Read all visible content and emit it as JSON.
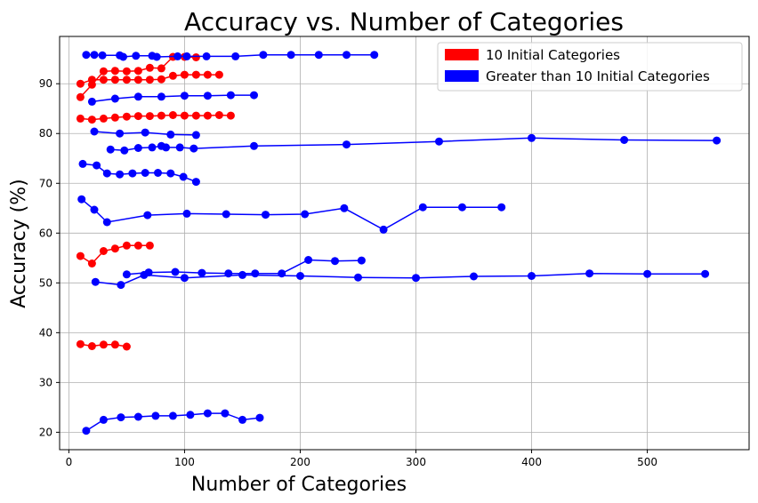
{
  "chart_data": {
    "type": "line",
    "title": "Accuracy vs. Number of Categories",
    "xlabel": "Number of Categories",
    "ylabel": "Accuracy (%)",
    "xlim": [
      -8,
      588
    ],
    "ylim": [
      16.5,
      99.5
    ],
    "xticks": [
      0,
      100,
      200,
      300,
      400,
      500
    ],
    "yticks": [
      20,
      30,
      40,
      50,
      60,
      70,
      80,
      90
    ],
    "grid": true,
    "legend_position": "top-right",
    "legend": [
      {
        "label": "10 Initial Categories",
        "color": "#ff0000"
      },
      {
        "label": "Greater than 10 Initial Categories",
        "color": "#0000ff"
      }
    ],
    "series": [
      {
        "color": "#ff0000",
        "x": [
          10,
          20,
          30,
          40,
          50,
          60,
          70,
          80,
          90,
          100,
          110,
          120,
          130
        ],
        "y": [
          90.0,
          90.8,
          90.8,
          90.8,
          90.8,
          90.8,
          90.8,
          90.9,
          91.6,
          91.8,
          91.8,
          91.8,
          91.8
        ]
      },
      {
        "color": "#ff0000",
        "x": [
          10,
          20,
          30,
          40,
          50,
          60,
          70,
          80,
          90,
          100,
          110
        ],
        "y": [
          87.3,
          89.8,
          92.5,
          92.6,
          92.5,
          92.6,
          93.2,
          93.1,
          95.4,
          95.4,
          95.3
        ]
      },
      {
        "color": "#ff0000",
        "x": [
          10,
          20,
          30,
          40,
          50,
          60,
          70,
          80,
          90,
          100,
          110,
          120,
          130,
          140
        ],
        "y": [
          83.0,
          82.8,
          83.0,
          83.2,
          83.4,
          83.5,
          83.5,
          83.6,
          83.7,
          83.6,
          83.6,
          83.6,
          83.7,
          83.6
        ]
      },
      {
        "color": "#ff0000",
        "x": [
          10,
          20,
          30,
          40,
          50,
          60,
          70
        ],
        "y": [
          55.4,
          53.9,
          56.4,
          56.9,
          57.5,
          57.5,
          57.5
        ]
      },
      {
        "color": "#ff0000",
        "x": [
          10,
          20,
          30,
          40,
          50
        ],
        "y": [
          37.7,
          37.3,
          37.6,
          37.6,
          37.2
        ]
      },
      {
        "color": "#0000ff",
        "x": [
          15,
          22,
          29,
          44,
          47,
          58,
          72,
          76,
          94,
          102,
          119,
          144,
          168,
          192,
          216,
          240,
          264
        ],
        "y": [
          95.8,
          95.8,
          95.7,
          95.7,
          95.4,
          95.6,
          95.6,
          95.4,
          95.5,
          95.5,
          95.5,
          95.5,
          95.8,
          95.8,
          95.8,
          95.8,
          95.8
        ]
      },
      {
        "color": "#0000ff",
        "x": [
          20,
          40,
          60,
          80,
          100,
          120,
          140,
          160
        ],
        "y": [
          86.4,
          87.0,
          87.4,
          87.4,
          87.6,
          87.6,
          87.7,
          87.7
        ]
      },
      {
        "color": "#0000ff",
        "x": [
          22,
          44,
          66,
          88,
          110
        ],
        "y": [
          80.4,
          80.0,
          80.2,
          79.8,
          79.7
        ]
      },
      {
        "color": "#0000ff",
        "x": [
          36,
          48,
          60,
          72,
          80,
          84,
          96,
          108,
          160,
          240,
          320,
          400,
          480,
          560
        ],
        "y": [
          76.8,
          76.6,
          77.1,
          77.2,
          77.5,
          77.2,
          77.2,
          77.0,
          77.5,
          77.8,
          78.4,
          79.1,
          78.7,
          78.6
        ]
      },
      {
        "color": "#0000ff",
        "x": [
          12,
          24,
          33,
          44,
          55,
          66,
          77,
          88,
          99,
          110
        ],
        "y": [
          73.9,
          73.6,
          72.0,
          71.8,
          72.0,
          72.1,
          72.1,
          72.0,
          71.3,
          70.3
        ]
      },
      {
        "color": "#0000ff",
        "x": [
          11,
          22,
          33,
          68,
          102,
          136,
          170,
          204,
          238,
          272,
          306,
          340,
          374
        ],
        "y": [
          66.8,
          64.7,
          62.2,
          63.6,
          63.9,
          63.8,
          63.7,
          63.8,
          65.0,
          60.7,
          65.2,
          65.2,
          65.2
        ]
      },
      {
        "color": "#0000ff",
        "x": [
          50,
          69,
          92,
          115,
          138,
          161,
          184,
          207,
          230,
          253
        ],
        "y": [
          51.7,
          52.1,
          52.2,
          52.0,
          51.9,
          51.9,
          51.9,
          54.6,
          54.4,
          54.5
        ]
      },
      {
        "color": "#0000ff",
        "x": [
          23,
          45,
          65,
          100,
          150,
          200,
          250,
          300,
          350,
          400,
          450,
          500,
          550
        ],
        "y": [
          50.2,
          49.6,
          51.6,
          51.0,
          51.6,
          51.4,
          51.1,
          51.0,
          51.3,
          51.4,
          51.9,
          51.8,
          51.8
        ]
      },
      {
        "color": "#0000ff",
        "x": [
          15,
          30,
          45,
          60,
          75,
          90,
          105,
          120,
          135,
          150,
          165
        ],
        "y": [
          20.3,
          22.5,
          23.0,
          23.1,
          23.3,
          23.3,
          23.5,
          23.8,
          23.8,
          22.5,
          22.9
        ]
      }
    ]
  }
}
